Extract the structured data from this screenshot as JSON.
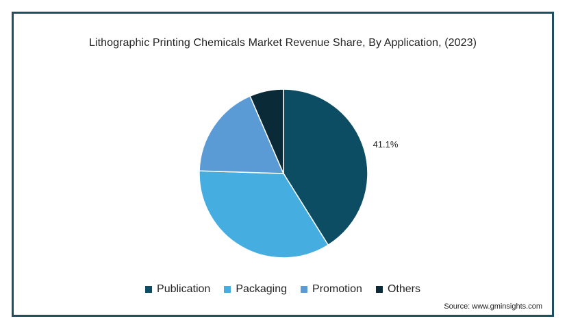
{
  "chart_data": {
    "type": "pie",
    "title": "Lithographic Printing Chemicals Market Revenue Share, By Application, (2023)",
    "categories": [
      "Publication",
      "Packaging",
      "Promotion",
      "Others"
    ],
    "values": [
      41.1,
      34.4,
      18.0,
      6.5
    ],
    "colors": [
      "#0d4d63",
      "#45ade0",
      "#5b9bd5",
      "#0a2a38"
    ],
    "data_labels": [
      {
        "category": "Publication",
        "text": "41.1%"
      }
    ],
    "legend_position": "bottom",
    "source": "Source: www.gminsights.com"
  }
}
